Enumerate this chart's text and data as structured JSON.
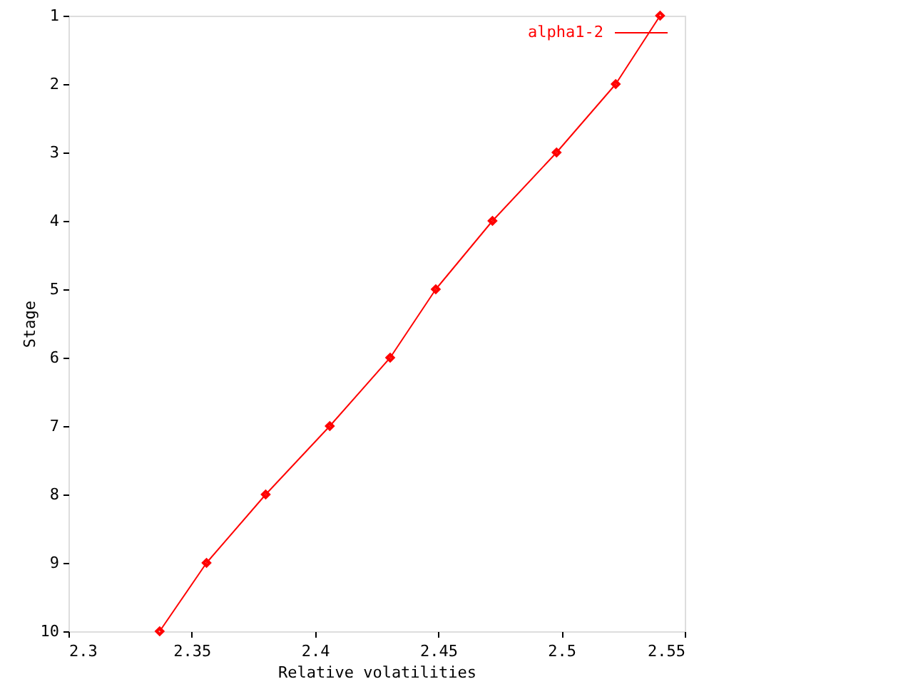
{
  "chart_data": {
    "type": "line",
    "xlabel": "Relative volatilities",
    "ylabel": "Stage",
    "x": [
      2.54,
      2.522,
      2.498,
      2.472,
      2.449,
      2.4305,
      2.406,
      2.38,
      2.356,
      2.337
    ],
    "series": [
      {
        "name": "alpha1-2",
        "color": "#ff0000",
        "values": [
          1,
          2,
          3,
          4,
          5,
          6,
          7,
          8,
          9,
          10
        ]
      }
    ],
    "xlim": [
      2.3,
      2.55
    ],
    "xticks": [
      2.3,
      2.35,
      2.4,
      2.45,
      2.5,
      2.55
    ],
    "ylim": [
      10,
      1
    ],
    "yticks": [
      1,
      2,
      3,
      4,
      5,
      6,
      7,
      8,
      9,
      10
    ],
    "grid": false,
    "legend": "top right",
    "marker": "diamond",
    "line_style": "solid"
  }
}
